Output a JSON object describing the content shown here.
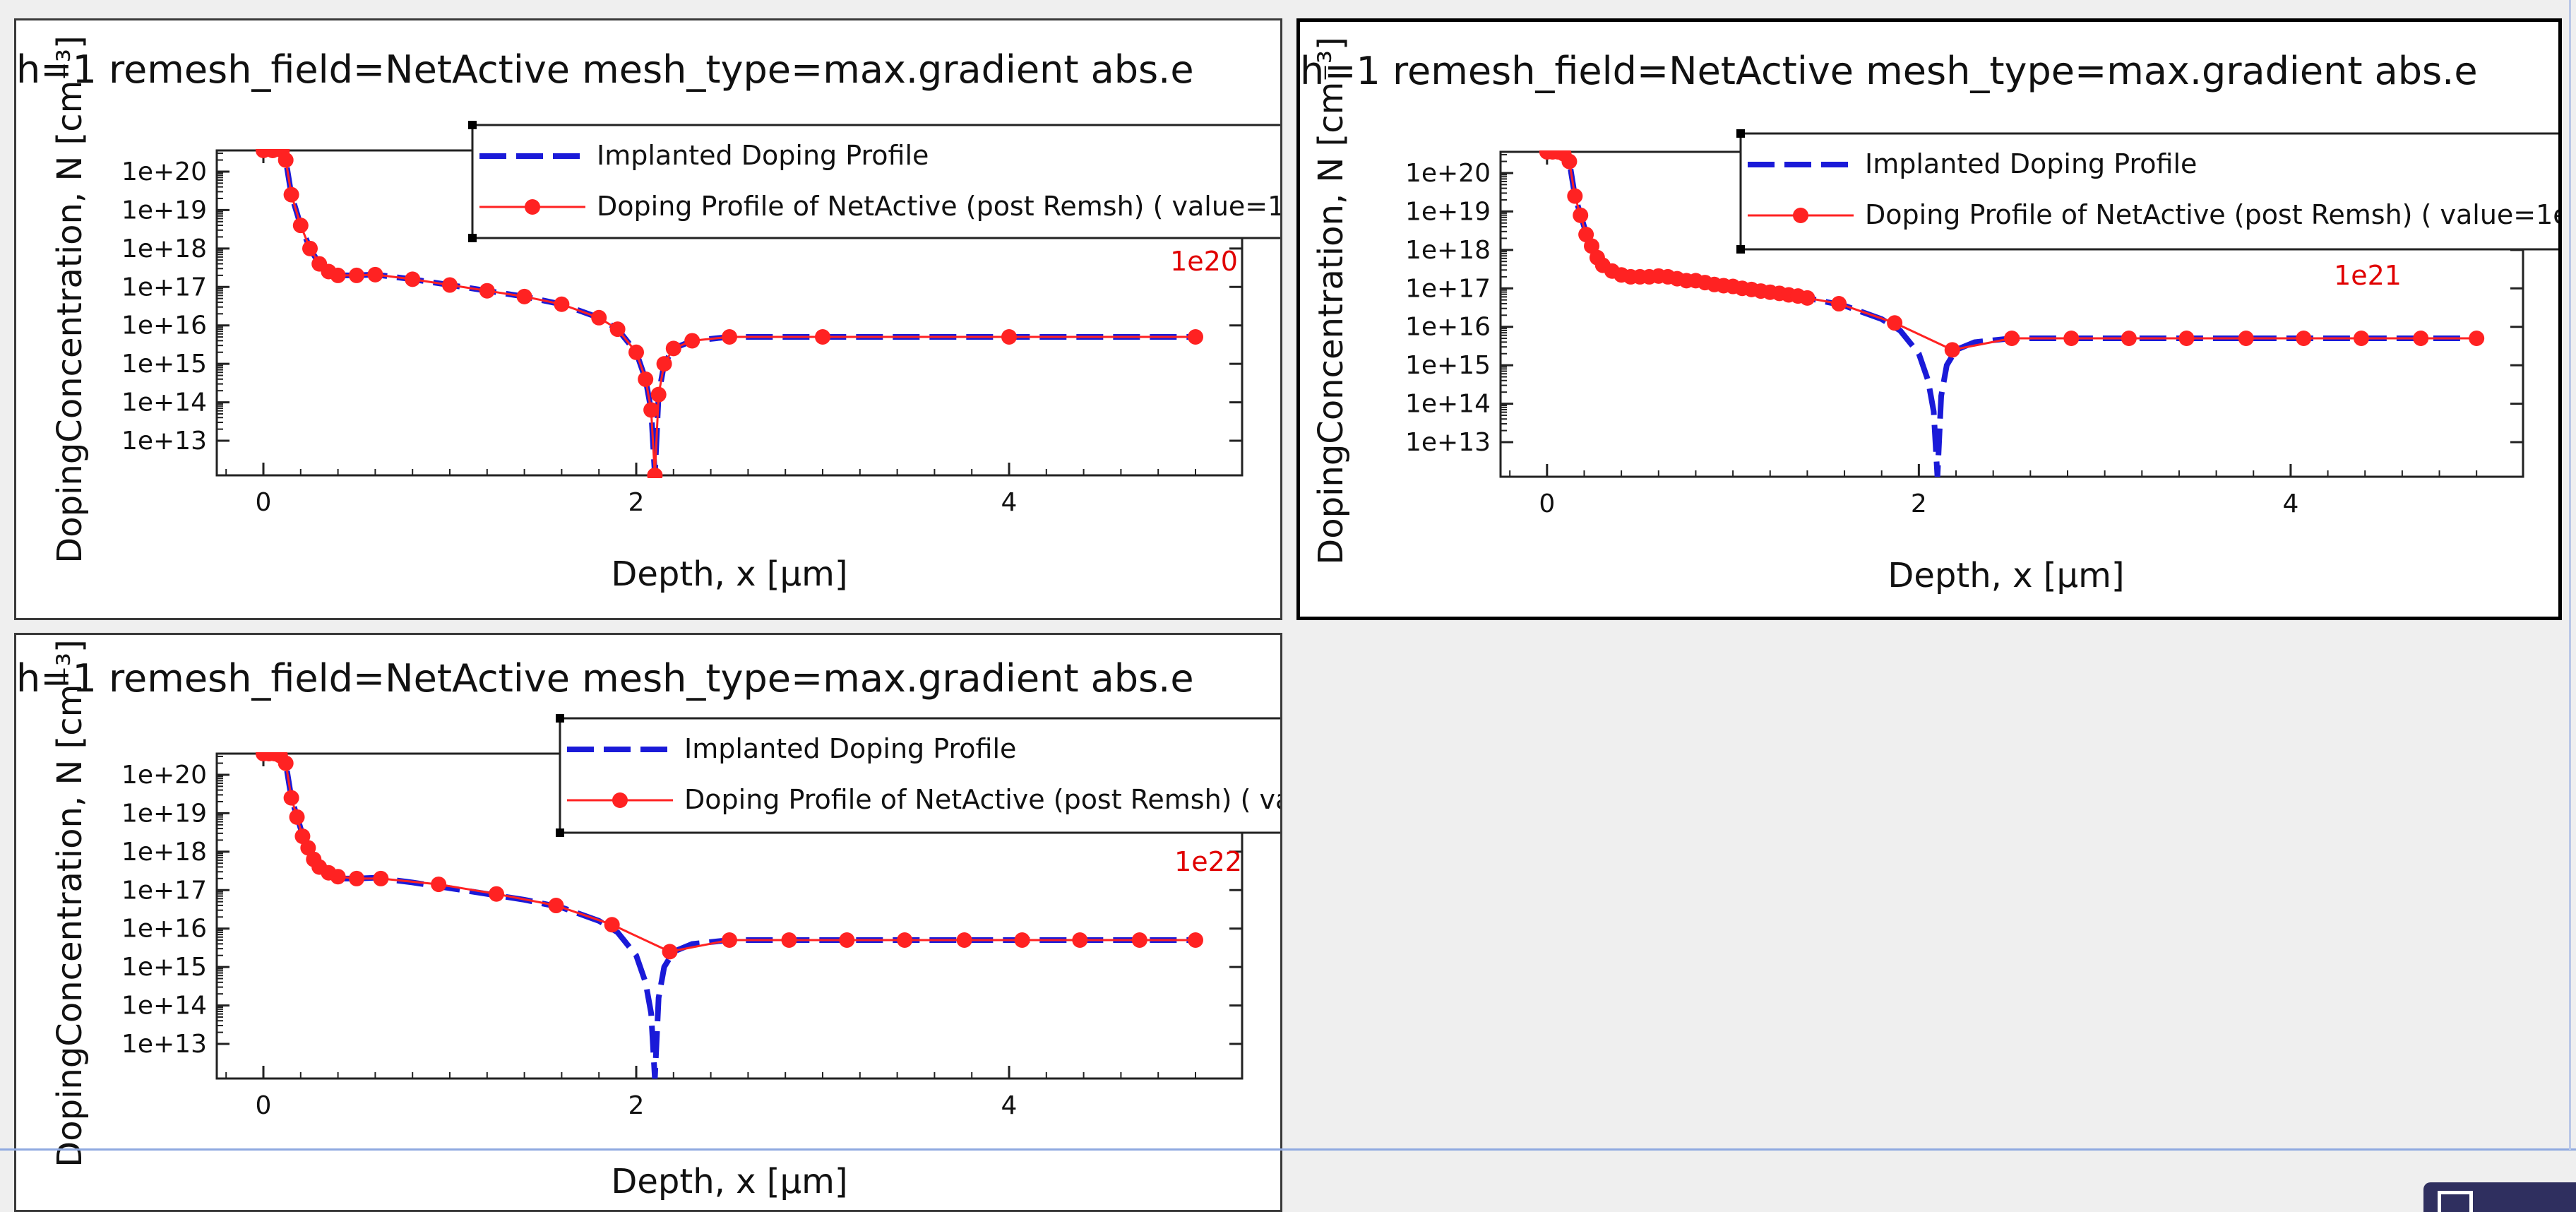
{
  "chart_data": [
    {
      "type": "line",
      "title": "h=1 remesh_field=NetActive mesh_type=max.gradient abs.e",
      "xlabel": "Depth, x [µm]",
      "ylabel": "DopingConcentration, N [cm⁻³]",
      "xlim": [
        -0.25,
        5.25
      ],
      "ylim": [
        12.1,
        20.55
      ],
      "y_scale": "log",
      "x_ticks": [
        "0",
        "2",
        "4"
      ],
      "y_ticks": [
        "1e+20",
        "1e+19",
        "1e+18",
        "1e+17",
        "1e+16",
        "1e+15",
        "1e+14",
        "1e+13"
      ],
      "annotation": "1e20",
      "legend": {
        "position": "top-right",
        "entries": [
          "Implanted Doping Profile",
          "Doping Profile of NetActive (post Remsh) ( value=1"
        ]
      },
      "series": [
        {
          "name": "Implanted Doping Profile",
          "style": "dashed",
          "color": "#1a1ad8",
          "x": [
            0,
            0.05,
            0.1,
            0.12,
            0.15,
            0.2,
            0.25,
            0.3,
            0.35,
            0.4,
            0.5,
            0.6,
            0.8,
            1.0,
            1.2,
            1.4,
            1.6,
            1.8,
            1.9,
            2.0,
            2.05,
            2.08,
            2.1,
            2.12,
            2.15,
            2.2,
            2.3,
            2.5,
            3.0,
            4.0,
            5.0
          ],
          "y": [
            20.55,
            20.55,
            20.55,
            20.3,
            19.4,
            18.6,
            18.0,
            17.6,
            17.4,
            17.3,
            17.3,
            17.32,
            17.2,
            17.05,
            16.9,
            16.75,
            16.55,
            16.2,
            15.9,
            15.3,
            14.6,
            13.8,
            12.1,
            14.2,
            15.0,
            15.4,
            15.6,
            15.7,
            15.7,
            15.7,
            15.7
          ]
        },
        {
          "name": "Doping Profile of NetActive (post Remsh) ( value=1",
          "style": "markers",
          "color": "#ff2222",
          "x": [
            0,
            0.05,
            0.1,
            0.12,
            0.15,
            0.2,
            0.25,
            0.3,
            0.35,
            0.4,
            0.5,
            0.6,
            0.8,
            1.0,
            1.2,
            1.4,
            1.6,
            1.8,
            1.9,
            2.0,
            2.05,
            2.08,
            2.1,
            2.12,
            2.15,
            2.2,
            2.3,
            2.5,
            3.0,
            4.0,
            5.0
          ],
          "y": [
            20.55,
            20.55,
            20.55,
            20.3,
            19.4,
            18.6,
            18.0,
            17.6,
            17.4,
            17.3,
            17.3,
            17.32,
            17.2,
            17.05,
            16.9,
            16.75,
            16.55,
            16.2,
            15.9,
            15.3,
            14.6,
            13.8,
            12.1,
            14.2,
            15.0,
            15.4,
            15.6,
            15.7,
            15.7,
            15.7,
            15.7
          ]
        }
      ]
    },
    {
      "type": "line",
      "title": "h=1 remesh_field=NetActive mesh_type=max.gradient abs.e",
      "xlabel": "Depth, x [µm]",
      "ylabel": "DopingConcentration, N [cm⁻³]",
      "xlim": [
        -0.25,
        5.25
      ],
      "ylim": [
        12.1,
        20.55
      ],
      "y_scale": "log",
      "x_ticks": [
        "0",
        "2",
        "4"
      ],
      "y_ticks": [
        "1e+20",
        "1e+19",
        "1e+18",
        "1e+17",
        "1e+16",
        "1e+15",
        "1e+14",
        "1e+13"
      ],
      "annotation": "1e21",
      "legend": {
        "position": "top-right",
        "entries": [
          "Implanted Doping Profile",
          "Doping Profile of NetActive (post Remsh) ( value=1e"
        ]
      },
      "series": [
        {
          "name": "Implanted Doping Profile",
          "style": "dashed",
          "color": "#1a1ad8",
          "x": [
            0,
            0.05,
            0.1,
            0.12,
            0.15,
            0.2,
            0.25,
            0.3,
            0.35,
            0.4,
            0.5,
            0.6,
            0.8,
            1.0,
            1.2,
            1.4,
            1.6,
            1.8,
            1.9,
            2.0,
            2.05,
            2.08,
            2.1,
            2.12,
            2.15,
            2.2,
            2.3,
            2.5,
            3.0,
            4.0,
            5.0
          ],
          "y": [
            20.55,
            20.55,
            20.55,
            20.3,
            19.4,
            18.6,
            18.0,
            17.6,
            17.4,
            17.3,
            17.3,
            17.32,
            17.2,
            17.05,
            16.9,
            16.75,
            16.55,
            16.2,
            15.9,
            15.3,
            14.6,
            13.8,
            12.1,
            14.2,
            15.0,
            15.4,
            15.6,
            15.7,
            15.7,
            15.7,
            15.7
          ]
        },
        {
          "name": "Doping Profile of NetActive (post Remsh) ( value=1e",
          "style": "markers",
          "color": "#ff2222",
          "x": [
            0,
            0.03,
            0.06,
            0.09,
            0.12,
            0.15,
            0.18,
            0.21,
            0.24,
            0.27,
            0.3,
            0.35,
            0.4,
            0.45,
            0.5,
            0.55,
            0.6,
            0.65,
            0.7,
            0.75,
            0.8,
            0.85,
            0.9,
            0.95,
            1.0,
            1.05,
            1.1,
            1.15,
            1.2,
            1.25,
            1.3,
            1.35,
            1.4,
            1.57,
            1.87,
            2.18,
            2.5,
            2.82,
            3.13,
            3.44,
            3.76,
            4.07,
            4.38,
            4.7,
            5.0
          ],
          "y": [
            20.55,
            20.55,
            20.55,
            20.5,
            20.3,
            19.4,
            18.9,
            18.4,
            18.1,
            17.8,
            17.6,
            17.45,
            17.35,
            17.3,
            17.3,
            17.3,
            17.32,
            17.3,
            17.25,
            17.2,
            17.2,
            17.15,
            17.1,
            17.07,
            17.05,
            17.0,
            16.97,
            16.93,
            16.9,
            16.87,
            16.83,
            16.8,
            16.75,
            16.6,
            16.1,
            15.4,
            15.7,
            15.7,
            15.7,
            15.7,
            15.7,
            15.7,
            15.7,
            15.7,
            15.7
          ]
        }
      ]
    },
    {
      "type": "line",
      "title": "h=1 remesh_field=NetActive mesh_type=max.gradient abs.e",
      "xlabel": "Depth, x [µm]",
      "ylabel": "DopingConcentration, N [cm⁻³]",
      "xlim": [
        -0.25,
        5.25
      ],
      "ylim": [
        12.1,
        20.55
      ],
      "y_scale": "log",
      "x_ticks": [
        "0",
        "2",
        "4"
      ],
      "y_ticks": [
        "1e+20",
        "1e+19",
        "1e+18",
        "1e+17",
        "1e+16",
        "1e+15",
        "1e+14",
        "1e+13"
      ],
      "annotation": "1e22",
      "legend": {
        "position": "top-right",
        "entries": [
          "Implanted Doping Profile",
          "Doping Profile of NetActive (post Remsh) ( va"
        ]
      },
      "series": [
        {
          "name": "Implanted Doping Profile",
          "style": "dashed",
          "color": "#1a1ad8",
          "x": [
            0,
            0.05,
            0.1,
            0.12,
            0.15,
            0.2,
            0.25,
            0.3,
            0.35,
            0.4,
            0.5,
            0.6,
            0.8,
            1.0,
            1.2,
            1.4,
            1.6,
            1.8,
            1.9,
            2.0,
            2.05,
            2.08,
            2.1,
            2.12,
            2.15,
            2.2,
            2.3,
            2.5,
            3.0,
            4.0,
            5.0
          ],
          "y": [
            20.55,
            20.55,
            20.55,
            20.3,
            19.4,
            18.6,
            18.0,
            17.6,
            17.4,
            17.3,
            17.3,
            17.32,
            17.2,
            17.05,
            16.9,
            16.75,
            16.55,
            16.2,
            15.9,
            15.3,
            14.6,
            13.8,
            12.1,
            14.2,
            15.0,
            15.4,
            15.6,
            15.7,
            15.7,
            15.7,
            15.7
          ]
        },
        {
          "name": "Doping Profile of NetActive (post Remsh) ( va",
          "style": "markers",
          "color": "#ff2222",
          "x": [
            0,
            0.03,
            0.06,
            0.09,
            0.12,
            0.15,
            0.18,
            0.21,
            0.24,
            0.27,
            0.3,
            0.35,
            0.4,
            0.5,
            0.63,
            0.94,
            1.25,
            1.57,
            1.87,
            2.18,
            2.5,
            2.82,
            3.13,
            3.44,
            3.76,
            4.07,
            4.38,
            4.7,
            5.0
          ],
          "y": [
            20.55,
            20.55,
            20.55,
            20.5,
            20.3,
            19.4,
            18.9,
            18.4,
            18.1,
            17.8,
            17.6,
            17.45,
            17.35,
            17.3,
            17.3,
            17.15,
            16.9,
            16.6,
            16.1,
            15.4,
            15.7,
            15.7,
            15.7,
            15.7,
            15.7,
            15.7,
            15.7,
            15.7,
            15.7
          ]
        }
      ]
    }
  ]
}
